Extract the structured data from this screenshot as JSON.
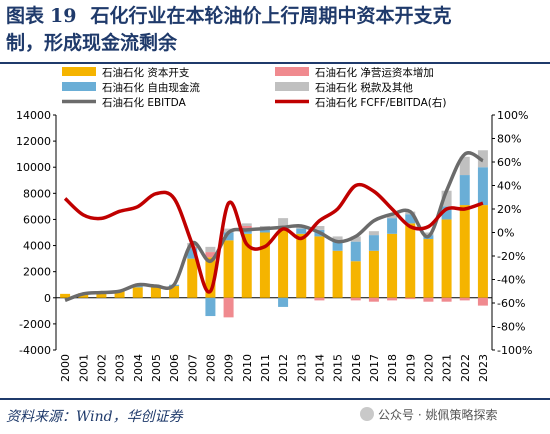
{
  "header": {
    "figure_label": "图表",
    "figure_number": "19",
    "title_line1": "石化行业在本轮油价上行周期中资本开支克",
    "title_line2": "制，形成现金流剩余"
  },
  "footer": {
    "source": "资料来源：Wind，华创证券",
    "watermark": "公众号 · 姚佩策略探索"
  },
  "colors": {
    "capex": "#f5b400",
    "nwc": "#f08a8f",
    "fcf": "#6aaed6",
    "tax": "#c0c0c0",
    "ebitda": "#6b6b6b",
    "ratio": "#c00000",
    "title": "#1f3a6b"
  },
  "chart_data": {
    "type": "bar",
    "x": [
      "2000",
      "2001",
      "2002",
      "2003",
      "2004",
      "2005",
      "2006",
      "2007",
      "2008",
      "2009",
      "2010",
      "2011",
      "2012",
      "2013",
      "2014",
      "2015",
      "2016",
      "2017",
      "2018",
      "2019",
      "2020",
      "2021",
      "2022",
      "2023"
    ],
    "series": [
      {
        "name": "石油石化 资本开支",
        "kind": "bar",
        "axis": "left",
        "values": [
          300,
          350,
          400,
          500,
          800,
          850,
          900,
          3000,
          3100,
          4400,
          4900,
          5000,
          5300,
          4900,
          4700,
          3600,
          2800,
          3600,
          4900,
          5700,
          4500,
          6000,
          7100,
          7100
        ]
      },
      {
        "name": "石油石化 自由现金流",
        "kind": "bar",
        "axis": "left",
        "values": [
          0,
          0,
          0,
          0,
          100,
          0,
          100,
          800,
          -1400,
          600,
          400,
          300,
          -700,
          400,
          500,
          700,
          1500,
          1200,
          1200,
          700,
          300,
          1000,
          2300,
          2900
        ]
      },
      {
        "name": "石油石化 净营运资本增加",
        "kind": "bar",
        "axis": "left",
        "values": [
          0,
          0,
          0,
          0,
          0,
          0,
          0,
          100,
          400,
          -1500,
          200,
          100,
          0,
          0,
          -200,
          100,
          -200,
          -300,
          -200,
          -100,
          -300,
          -300,
          -200,
          -600
        ]
      },
      {
        "name": "石油石化 税款及其他",
        "kind": "bar",
        "axis": "left",
        "values": [
          0,
          0,
          0,
          0,
          0,
          0,
          0,
          300,
          400,
          300,
          200,
          100,
          800,
          200,
          300,
          300,
          400,
          300,
          200,
          200,
          200,
          1200,
          1400,
          1300
        ]
      },
      {
        "name": "石油石化 EBITDA",
        "kind": "line",
        "axis": "left",
        "values": [
          -200,
          300,
          400,
          500,
          1000,
          900,
          1000,
          4200,
          2800,
          5000,
          5200,
          5300,
          5400,
          5500,
          5000,
          4300,
          4700,
          5900,
          6400,
          6600,
          4700,
          8200,
          11000,
          10500
        ]
      },
      {
        "name": "石油石化 FCFF/EBITDA(右)",
        "kind": "line",
        "axis": "right",
        "values": [
          29,
          15,
          12,
          18,
          22,
          33,
          29,
          -10,
          -50,
          25,
          -10,
          -12,
          3,
          -5,
          10,
          20,
          40,
          35,
          20,
          5,
          5,
          20,
          20,
          25
        ]
      }
    ],
    "y_left": {
      "min": -4000,
      "max": 14000,
      "ticks": [
        "-4000",
        "-2000",
        "0",
        "2000",
        "4000",
        "6000",
        "8000",
        "10000",
        "12000",
        "14000"
      ]
    },
    "y_right": {
      "min": -100,
      "max": 100,
      "ticks": [
        "-100%",
        "-80%",
        "-60%",
        "-40%",
        "-20%",
        "0%",
        "20%",
        "40%",
        "60%",
        "80%",
        "100%"
      ]
    },
    "legend_position": "top",
    "grid": false
  }
}
